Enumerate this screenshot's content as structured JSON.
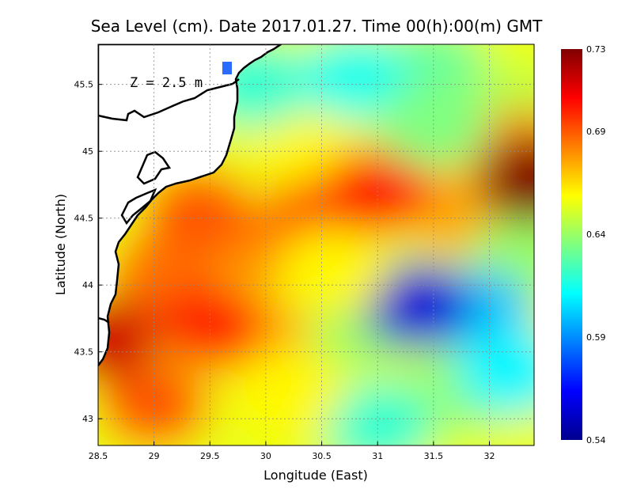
{
  "map": {
    "title": "Sea Level (cm). Date 2017.01.27. Time 00(h):00(m) GMT",
    "depth_label": "Z = 2.5 m",
    "xlabel": "Longitude (East)",
    "ylabel": "Latitude (North)",
    "xticks": [
      "28.5",
      "29",
      "29.5",
      "30",
      "30.5",
      "31",
      "31.5",
      "32"
    ],
    "yticks": [
      "43",
      "43.5",
      "44",
      "44.5",
      "45",
      "45.5"
    ],
    "colorbar_ticks": [
      "0.73",
      "0.69",
      "0.64",
      "0.59",
      "0.54"
    ]
  },
  "chart_data": {
    "type": "heatmap",
    "title": "Sea Level (cm). Date 2017.01.27. Time 00(h):00(m) GMT",
    "xlabel": "Longitude (East)",
    "ylabel": "Latitude (North)",
    "xlim": [
      28.5,
      32.4
    ],
    "ylim": [
      42.8,
      45.8
    ],
    "color_range": [
      0.54,
      0.73
    ],
    "colormap": "jet",
    "grid": true,
    "colorbar": "right",
    "features": [
      {
        "lon": 31.35,
        "lat": 43.85,
        "value": 0.555
      },
      {
        "lon": 32.4,
        "lat": 44.78,
        "value": 0.73
      },
      {
        "lon": 28.55,
        "lat": 43.6,
        "value": 0.715
      },
      {
        "lon": 29.5,
        "lat": 43.7,
        "value": 0.7
      },
      {
        "lon": 29.4,
        "lat": 44.55,
        "value": 0.69
      },
      {
        "lon": 31.0,
        "lat": 44.7,
        "value": 0.705
      },
      {
        "lon": 30.8,
        "lat": 45.55,
        "value": 0.615
      },
      {
        "lon": 31.5,
        "lat": 45.2,
        "value": 0.635
      },
      {
        "lon": 32.2,
        "lat": 43.35,
        "value": 0.61
      },
      {
        "lon": 31.0,
        "lat": 42.95,
        "value": 0.62
      },
      {
        "lon": 30.2,
        "lat": 43.2,
        "value": 0.66
      },
      {
        "lon": 30.6,
        "lat": 44.1,
        "value": 0.66
      }
    ]
  }
}
